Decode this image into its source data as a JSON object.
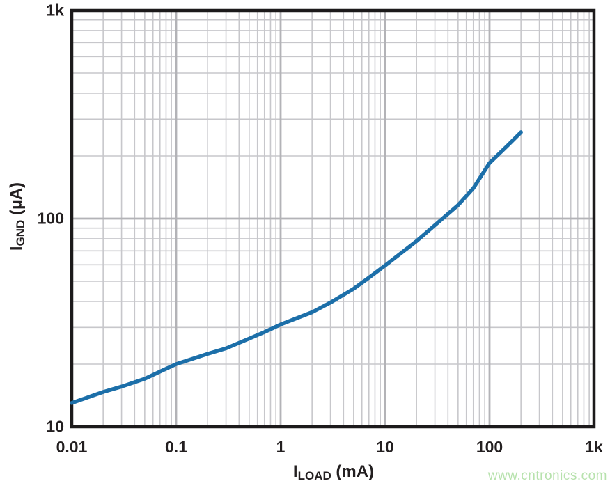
{
  "watermark": {
    "text": "www.cntronics.com",
    "color": "#b7e2ad"
  },
  "chart_data": {
    "type": "line",
    "title": "",
    "x_axis": {
      "label_pre": "I",
      "label_sub": "LOAD",
      "label_post": " (mA)",
      "scale": "log",
      "min": 0.01,
      "max": 1000,
      "ticks": [
        {
          "value": 0.01,
          "label": "0.01"
        },
        {
          "value": 0.1,
          "label": "0.1"
        },
        {
          "value": 1,
          "label": "1"
        },
        {
          "value": 10,
          "label": "10"
        },
        {
          "value": 100,
          "label": "100"
        },
        {
          "value": 1000,
          "label": "1k"
        }
      ]
    },
    "y_axis": {
      "label_pre": "I",
      "label_sub": "GND",
      "label_post": " (µA)",
      "scale": "log",
      "min": 10,
      "max": 1000,
      "ticks": [
        {
          "value": 10,
          "label": "10"
        },
        {
          "value": 100,
          "label": "100"
        },
        {
          "value": 1000,
          "label": "1k"
        }
      ]
    },
    "grid": {
      "show": true,
      "minor_color": "#c7c7cb",
      "major_color": "#b3b3b7",
      "border_color": "#1c1a1b"
    },
    "series": [
      {
        "name": "ground-current-curve",
        "color": "#1c6fa9",
        "x": [
          0.01,
          0.02,
          0.03,
          0.05,
          0.07,
          0.1,
          0.2,
          0.3,
          0.5,
          0.7,
          1,
          2,
          3,
          5,
          7,
          10,
          20,
          30,
          50,
          70,
          100,
          150,
          200
        ],
        "y": [
          13,
          14.7,
          15.6,
          17,
          18.4,
          20,
          22.4,
          23.8,
          26.5,
          28.5,
          31,
          35.5,
          39.5,
          46,
          52,
          59.5,
          78,
          93,
          116,
          140,
          185,
          225,
          260
        ]
      }
    ]
  }
}
